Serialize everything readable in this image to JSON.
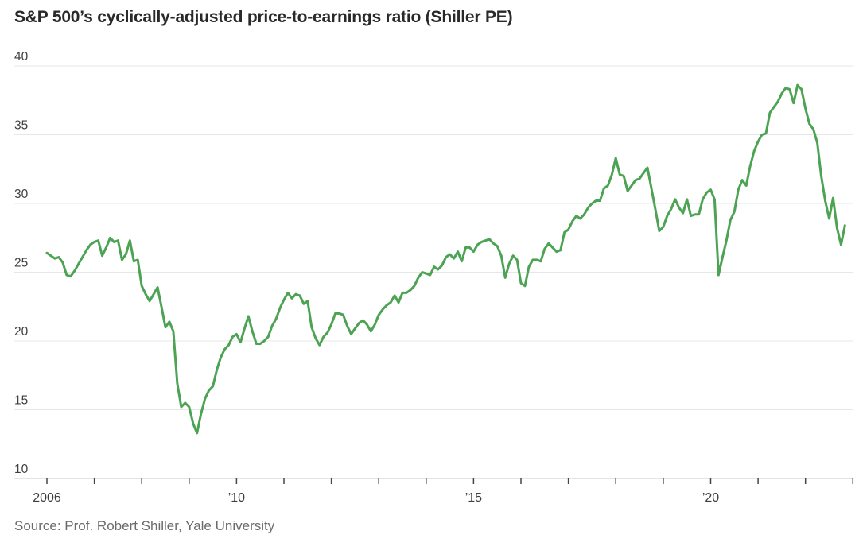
{
  "header": {
    "title": "S&P 500’s cyclically-adjusted price-to-earnings ratio (Shiller PE)"
  },
  "source": {
    "text": "Source: Prof. Robert Shiller, Yale University"
  },
  "chart_data": {
    "type": "line",
    "title": "S&P 500’s cyclically-adjusted price-to-earnings ratio (Shiller PE)",
    "xlabel": "",
    "ylabel": "",
    "ylim": [
      10,
      40
    ],
    "yticks": [
      10,
      15,
      20,
      25,
      30,
      35,
      40
    ],
    "grid": "horizontal",
    "legend": "none",
    "x_start_year": 2006,
    "x_start_month": 1,
    "frequency": "monthly",
    "x_end_label": "Nov 2022",
    "xticks_years": [
      2006,
      2007,
      2008,
      2009,
      2010,
      2011,
      2012,
      2013,
      2014,
      2015,
      2016,
      2017,
      2018,
      2019,
      2020,
      2021,
      2022,
      2023
    ],
    "xtick_labels": {
      "2006": "2006",
      "2010": "’10",
      "2015": "’15",
      "2020": "’20"
    },
    "series": [
      {
        "name": "Shiller PE",
        "color": "#4CA354",
        "values": [
          26.4,
          26.2,
          26.0,
          26.1,
          25.7,
          24.8,
          24.7,
          25.1,
          25.6,
          26.1,
          26.6,
          27.0,
          27.2,
          27.3,
          26.2,
          26.8,
          27.5,
          27.2,
          27.3,
          25.9,
          26.3,
          27.3,
          25.8,
          25.9,
          24.0,
          23.4,
          22.9,
          23.4,
          23.9,
          22.5,
          21.0,
          21.4,
          20.7,
          16.9,
          15.2,
          15.5,
          15.2,
          14.0,
          13.3,
          14.7,
          15.8,
          16.4,
          16.7,
          17.9,
          18.8,
          19.4,
          19.7,
          20.3,
          20.5,
          19.9,
          20.9,
          21.8,
          20.7,
          19.8,
          19.8,
          20.0,
          20.3,
          21.1,
          21.6,
          22.4,
          23.0,
          23.5,
          23.1,
          23.4,
          23.3,
          22.7,
          22.9,
          21.0,
          20.2,
          19.7,
          20.3,
          20.6,
          21.2,
          22.0,
          22.0,
          21.9,
          21.1,
          20.5,
          20.9,
          21.3,
          21.5,
          21.2,
          20.7,
          21.2,
          21.9,
          22.3,
          22.6,
          22.8,
          23.3,
          22.8,
          23.5,
          23.5,
          23.7,
          24.0,
          24.6,
          25.0,
          24.9,
          24.8,
          25.4,
          25.2,
          25.5,
          26.1,
          26.3,
          26.0,
          26.5,
          25.8,
          26.8,
          26.8,
          26.5,
          27.0,
          27.2,
          27.3,
          27.4,
          27.1,
          26.9,
          26.2,
          24.6,
          25.6,
          26.2,
          25.9,
          24.2,
          24.0,
          25.4,
          25.9,
          25.9,
          25.8,
          26.7,
          27.1,
          26.8,
          26.5,
          26.6,
          27.9,
          28.1,
          28.7,
          29.1,
          28.9,
          29.2,
          29.7,
          30.0,
          30.2,
          30.2,
          31.1,
          31.3,
          32.1,
          33.3,
          32.1,
          32.0,
          30.9,
          31.3,
          31.7,
          31.8,
          32.2,
          32.6,
          31.1,
          29.6,
          28.0,
          28.3,
          29.1,
          29.6,
          30.3,
          29.7,
          29.3,
          30.3,
          29.1,
          29.2,
          29.2,
          30.3,
          30.8,
          31.0,
          30.3,
          24.8,
          26.1,
          27.3,
          28.8,
          29.4,
          31.0,
          31.7,
          31.3,
          32.7,
          33.8,
          34.5,
          35.0,
          35.1,
          36.6,
          37.0,
          37.4,
          38.0,
          38.4,
          38.3,
          37.3,
          38.6,
          38.3,
          36.9,
          35.8,
          35.4,
          34.4,
          32.0,
          30.2,
          28.9,
          30.4,
          28.2,
          27.0,
          28.4
        ]
      }
    ],
    "colors": {
      "line": "#4CA354",
      "grid": "#e7e7e7",
      "axis": "#c9c9c9",
      "tick": "#454545",
      "label": "#3f3f3f",
      "title": "#28292b",
      "source": "#6b6b6b"
    }
  }
}
